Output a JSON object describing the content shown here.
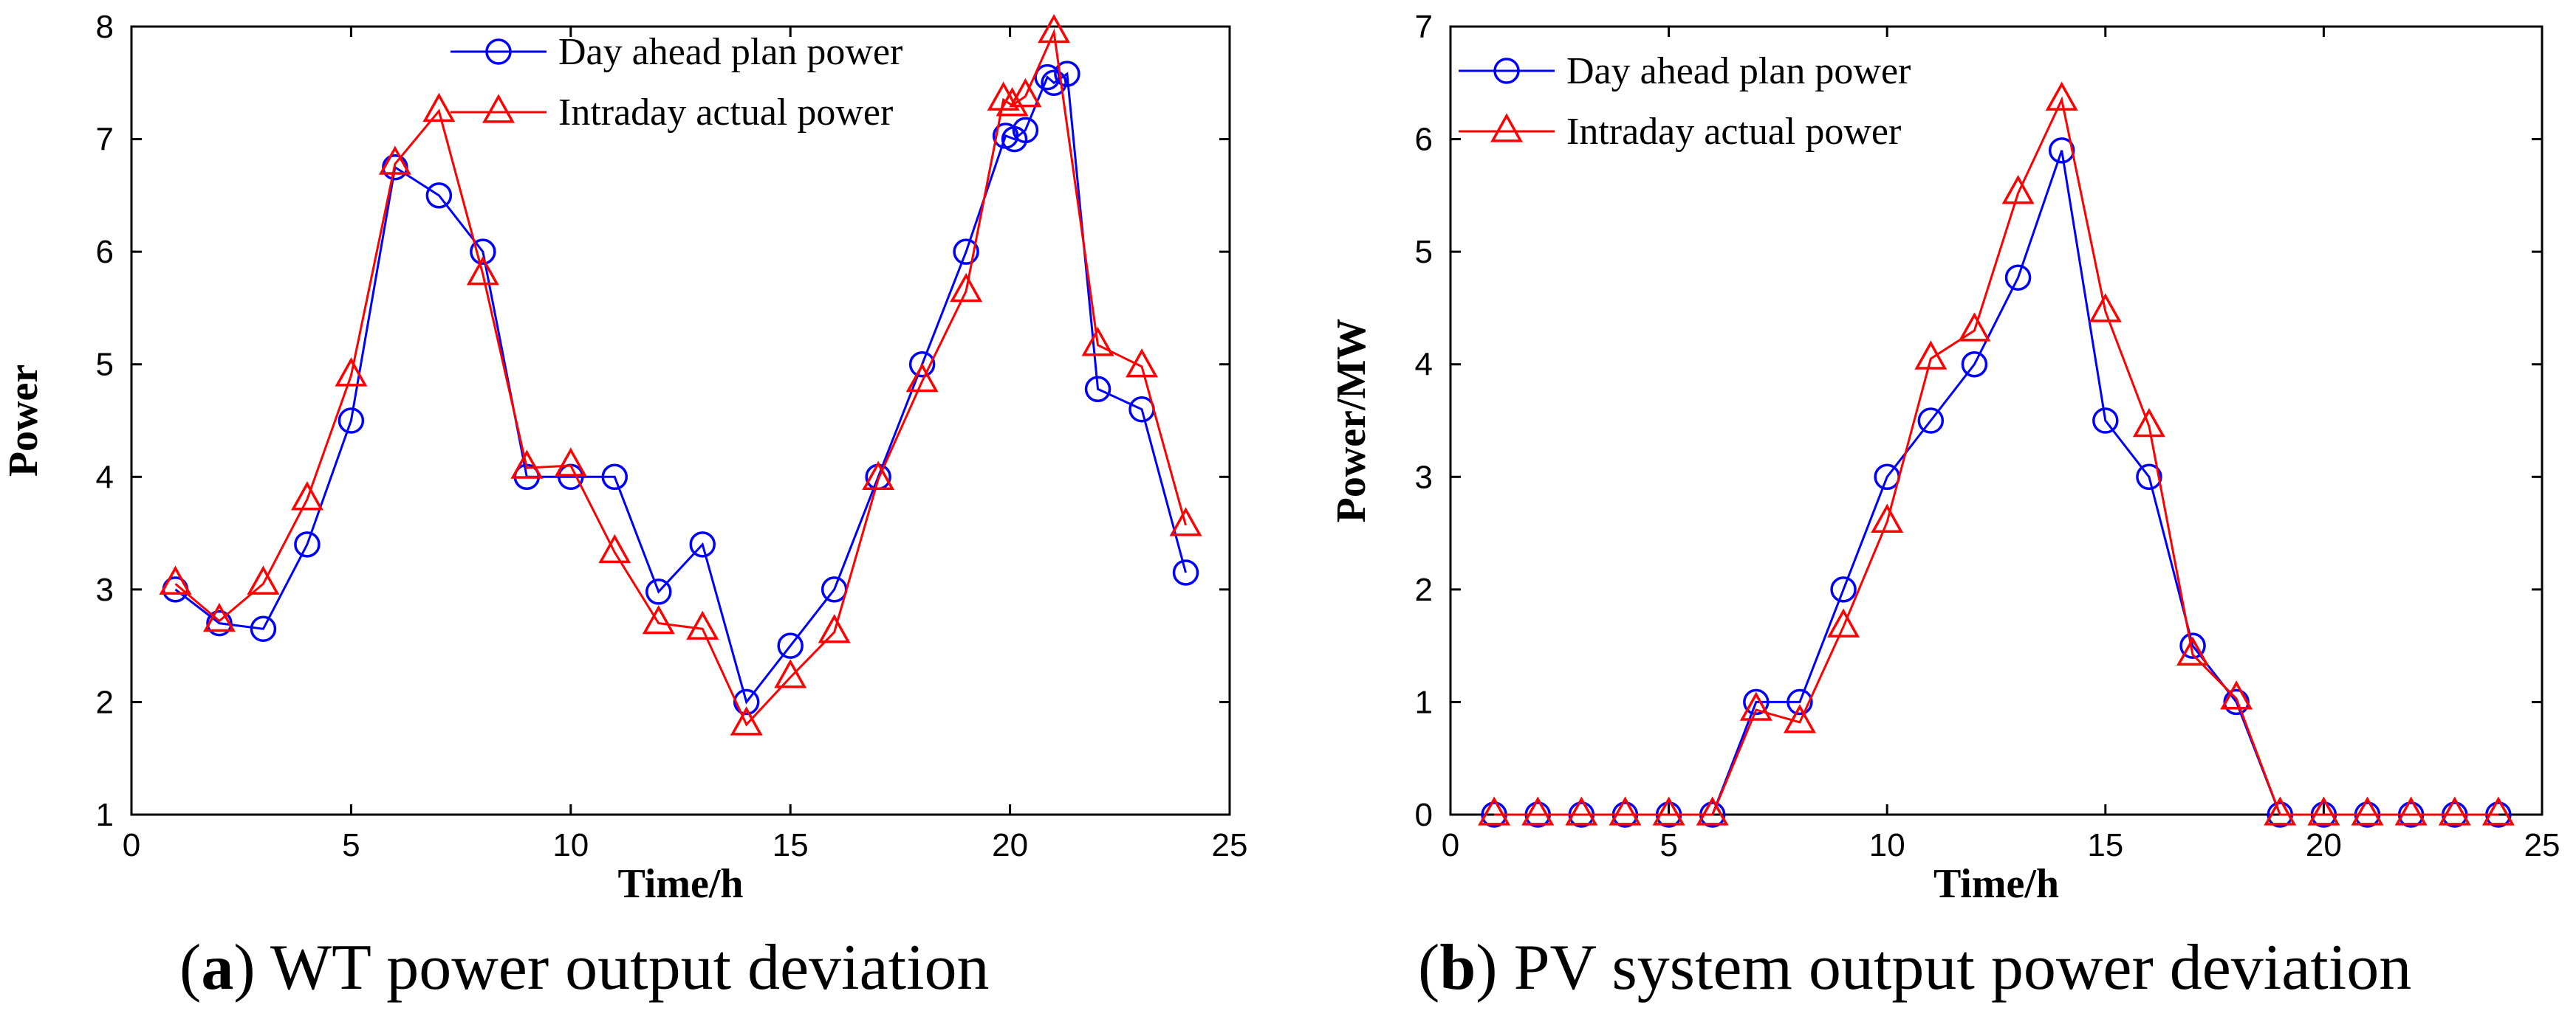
{
  "chart_data": [
    {
      "id": "wt",
      "type": "line",
      "caption_letter": "a",
      "caption_text": "WT power output deviation",
      "caption_open": "(",
      "caption_close": ")",
      "xlabel": "Time/h",
      "ylabel": "Power",
      "xlim": [
        0,
        25
      ],
      "ylim": [
        1,
        8
      ],
      "xticks": [
        0,
        5,
        10,
        15,
        20,
        25
      ],
      "yticks": [
        1,
        2,
        3,
        4,
        5,
        6,
        7,
        8
      ],
      "grid": false,
      "legend_position": "top-center",
      "series": [
        {
          "name": "Day ahead plan power",
          "color": "#0000ff",
          "marker": "circle",
          "x": [
            1,
            2,
            3,
            4,
            5,
            6,
            7,
            8,
            9,
            10,
            11,
            12,
            13,
            14,
            15,
            16,
            17,
            18,
            19,
            19.9,
            20.1,
            20.35,
            20.85,
            21.0,
            21.3,
            22,
            23,
            24
          ],
          "y": [
            3.0,
            2.7,
            2.65,
            3.4,
            4.5,
            6.75,
            6.5,
            6.0,
            4.0,
            4.0,
            4.0,
            2.98,
            3.4,
            2.0,
            2.5,
            3.0,
            4.0,
            5.0,
            6.0,
            7.03,
            7.0,
            7.08,
            7.55,
            7.5,
            7.58,
            4.78,
            4.6,
            3.15
          ]
        },
        {
          "name": "Intraday actual power",
          "color": "#ff0000",
          "marker": "triangle",
          "x": [
            1,
            2,
            3,
            4,
            5,
            6,
            7,
            8,
            9,
            10,
            11,
            12,
            13,
            14,
            15,
            16,
            17,
            18,
            19,
            19.85,
            20.05,
            20.35,
            21.0,
            22,
            23,
            24
          ],
          "y": [
            3.05,
            2.72,
            3.05,
            3.8,
            4.9,
            6.78,
            7.25,
            5.8,
            4.08,
            4.1,
            3.33,
            2.7,
            2.65,
            1.8,
            2.22,
            2.62,
            3.98,
            4.85,
            5.65,
            7.35,
            7.3,
            7.38,
            7.95,
            5.17,
            4.98,
            3.57
          ]
        }
      ]
    },
    {
      "id": "pv",
      "type": "line",
      "caption_letter": "b",
      "caption_text": "PV system output power deviation",
      "caption_open": "(",
      "caption_close": ")",
      "xlabel": "Time/h",
      "ylabel": "Power/MW",
      "xlim": [
        0,
        25
      ],
      "ylim": [
        0,
        7
      ],
      "xticks": [
        0,
        5,
        10,
        15,
        20,
        25
      ],
      "yticks": [
        0,
        1,
        2,
        3,
        4,
        5,
        6,
        7
      ],
      "grid": false,
      "legend_position": "top-left",
      "series": [
        {
          "name": "Day ahead plan power",
          "color": "#0000ff",
          "marker": "circle",
          "x": [
            1,
            2,
            3,
            4,
            5,
            6,
            7,
            8,
            9,
            10,
            11,
            12,
            13,
            14,
            15,
            16,
            17,
            18,
            19,
            20,
            21,
            22,
            23,
            24
          ],
          "y": [
            0,
            0,
            0,
            0,
            0,
            0,
            1.0,
            1.0,
            2.0,
            3.0,
            3.5,
            4.0,
            4.77,
            5.9,
            3.5,
            3.0,
            1.5,
            1.0,
            0,
            0,
            0,
            0,
            0,
            0
          ]
        },
        {
          "name": "Intraday actual power",
          "color": "#ff0000",
          "marker": "triangle",
          "x": [
            1,
            2,
            3,
            4,
            5,
            6,
            7,
            8,
            9,
            10,
            11,
            12,
            13,
            14,
            15,
            16,
            17,
            18,
            19,
            20,
            21,
            22,
            23,
            24
          ],
          "y": [
            0,
            0,
            0,
            0,
            0,
            0,
            0.93,
            0.82,
            1.67,
            2.6,
            4.05,
            4.3,
            5.52,
            6.35,
            4.47,
            3.45,
            1.42,
            1.03,
            0,
            0,
            0,
            0,
            0,
            0
          ]
        }
      ]
    }
  ]
}
